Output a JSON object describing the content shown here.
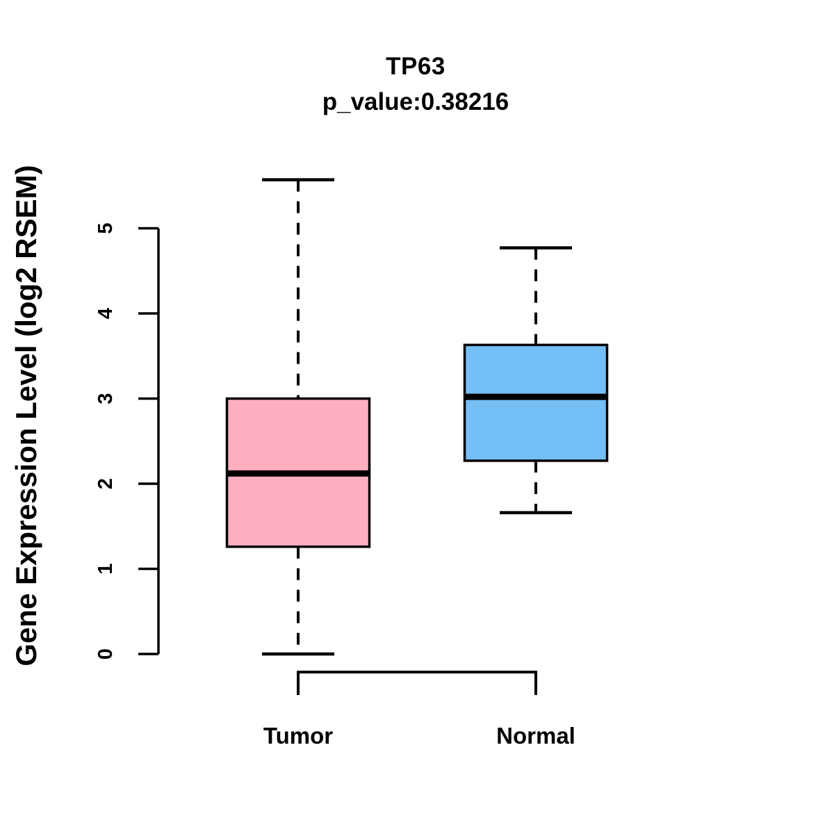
{
  "header": {
    "title": "TP63",
    "subtitle": "p_value:0.38216"
  },
  "chart_data": {
    "type": "boxplot",
    "title": "TP63",
    "subtitle": "p_value:0.38216",
    "gene": "TP63",
    "p_value": 0.38216,
    "ylabel": "Gene Expression Level (log2 RSEM)",
    "xlabel": "",
    "ylim": [
      0,
      5.6
    ],
    "yticks": [
      "0",
      "1",
      "2",
      "3",
      "4",
      "5"
    ],
    "grid": false,
    "legend": "none",
    "categories": [
      "Tumor",
      "Normal"
    ],
    "series": [
      {
        "name": "Tumor",
        "fill": "#FFB0C0",
        "whisker_low": 0.0,
        "q1": 1.26,
        "median": 2.12,
        "q3": 3.0,
        "whisker_high": 5.57
      },
      {
        "name": "Normal",
        "fill": "#74BFF5",
        "whisker_low": 1.66,
        "q1": 2.27,
        "median": 3.02,
        "q3": 3.63,
        "whisker_high": 4.77
      }
    ]
  },
  "colors": {
    "tumor_fill": "#FFB0C0",
    "normal_fill": "#74BFF5",
    "stroke": "#000000",
    "background": "#FFFFFF"
  }
}
